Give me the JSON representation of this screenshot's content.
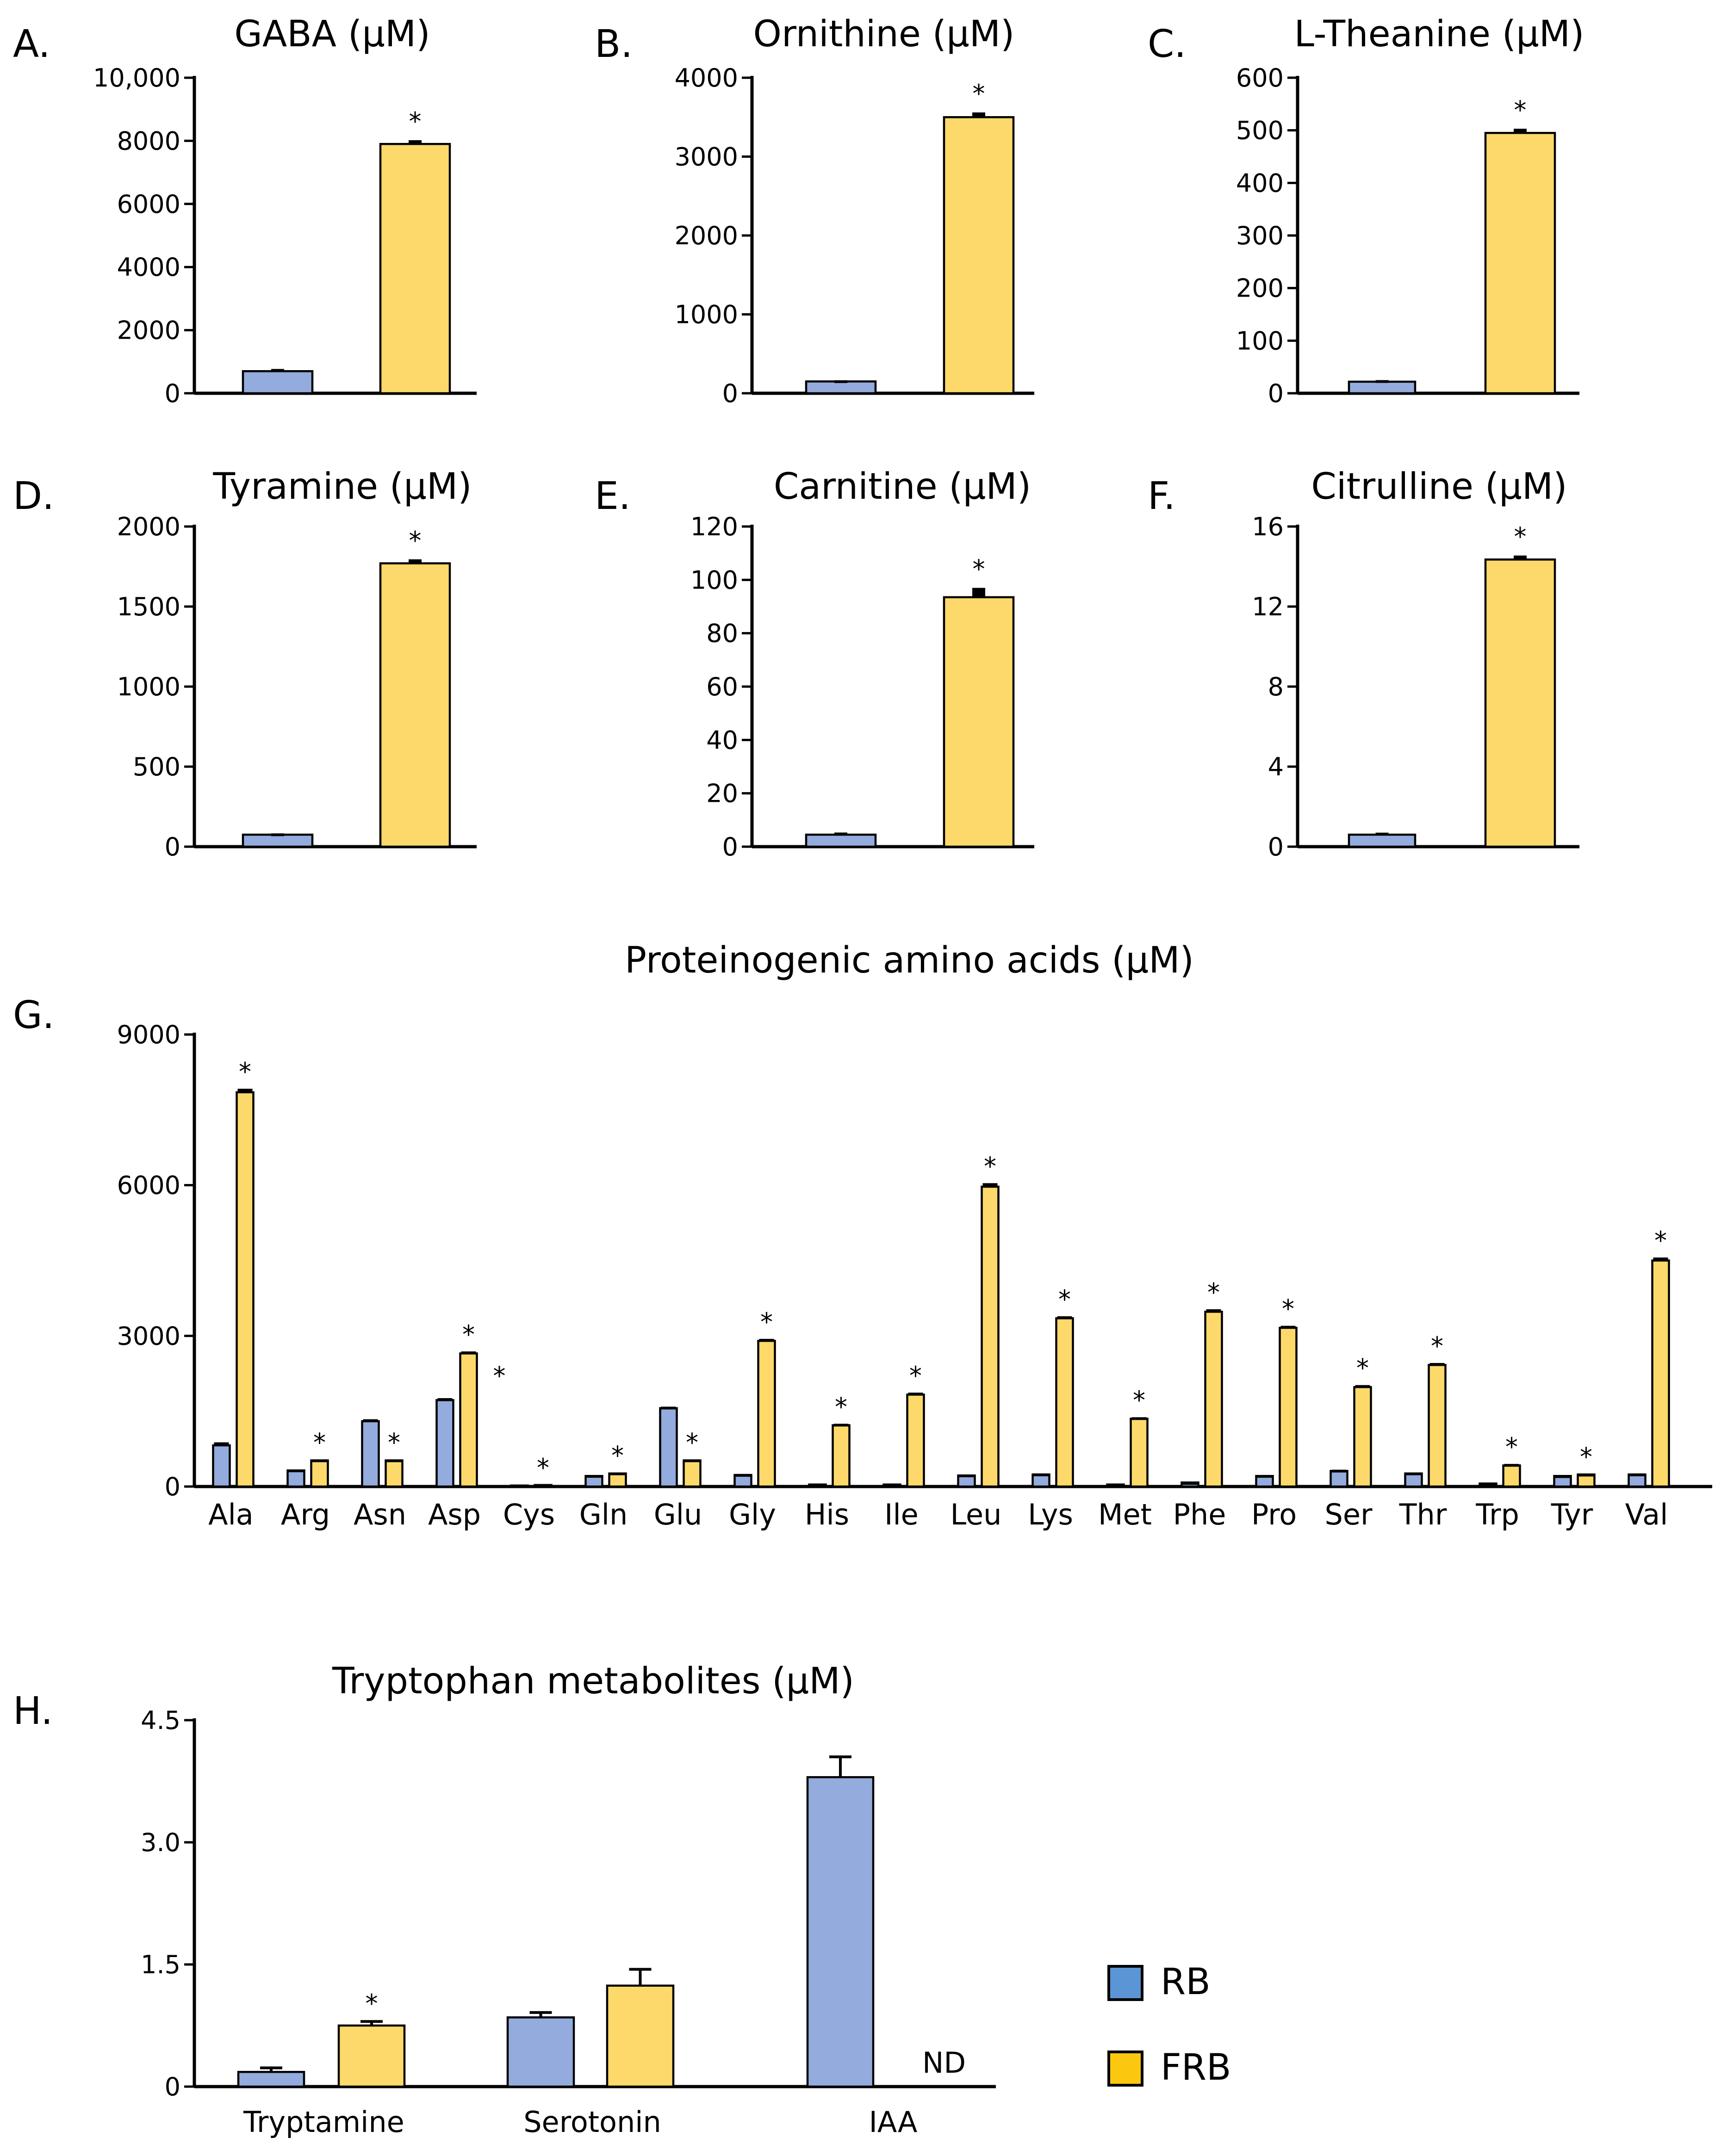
{
  "colors": {
    "RB": "#93abdd",
    "FRB": "#fdd96b"
  },
  "legend": [
    {
      "key": "RB",
      "label": "RB",
      "color": "#5b95d6"
    },
    {
      "key": "FRB",
      "label": "FRB",
      "color": "#fcc80f"
    }
  ],
  "chart_data": [
    {
      "id": "A",
      "letter": "A.",
      "type": "bar",
      "title": "GABA (µM)",
      "categories": [
        "RB",
        "FRB"
      ],
      "values": [
        700,
        7900
      ],
      "errors": [
        70,
        120
      ],
      "significant": [
        false,
        true
      ],
      "ylim": [
        0,
        10000
      ],
      "yticks": [
        0,
        2000,
        4000,
        6000,
        8000,
        10000
      ],
      "ytick_labels": [
        "0",
        "2000",
        "4000",
        "6000",
        "8000",
        "10,000"
      ]
    },
    {
      "id": "B",
      "letter": "B.",
      "type": "bar",
      "title": "Ornithine (µM)",
      "categories": [
        "RB",
        "FRB"
      ],
      "values": [
        150,
        3500
      ],
      "errors": [
        15,
        60
      ],
      "significant": [
        false,
        true
      ],
      "ylim": [
        0,
        4000
      ],
      "yticks": [
        0,
        1000,
        2000,
        3000,
        4000
      ],
      "ytick_labels": [
        "0",
        "1000",
        "2000",
        "3000",
        "4000"
      ]
    },
    {
      "id": "C",
      "letter": "C.",
      "type": "bar",
      "title": "L-Theanine (µM)",
      "categories": [
        "RB",
        "FRB"
      ],
      "values": [
        22,
        495
      ],
      "errors": [
        3,
        8
      ],
      "significant": [
        false,
        true
      ],
      "ylim": [
        0,
        600
      ],
      "yticks": [
        0,
        100,
        200,
        300,
        400,
        500,
        600
      ],
      "ytick_labels": [
        "0",
        "100",
        "200",
        "300",
        "400",
        "500",
        "600"
      ]
    },
    {
      "id": "D",
      "letter": "D.",
      "type": "bar",
      "title": "Tyramine (µM)",
      "categories": [
        "RB",
        "FRB"
      ],
      "values": [
        75,
        1770
      ],
      "errors": [
        8,
        25
      ],
      "significant": [
        false,
        true
      ],
      "ylim": [
        0,
        2000
      ],
      "yticks": [
        0,
        500,
        1000,
        1500,
        2000
      ],
      "ytick_labels": [
        "0",
        "500",
        "1000",
        "1500",
        "2000"
      ]
    },
    {
      "id": "E",
      "letter": "E.",
      "type": "bar",
      "title": "Carnitine (µM)",
      "categories": [
        "RB",
        "FRB"
      ],
      "values": [
        4.5,
        93.5
      ],
      "errors": [
        0.8,
        3.5
      ],
      "significant": [
        false,
        true
      ],
      "ylim": [
        0,
        120
      ],
      "yticks": [
        0,
        20,
        40,
        60,
        80,
        100,
        120
      ],
      "ytick_labels": [
        "0",
        "20",
        "40",
        "60",
        "80",
        "100",
        "120"
      ]
    },
    {
      "id": "F",
      "letter": "F.",
      "type": "bar",
      "title": "Citrulline (µM)",
      "categories": [
        "RB",
        "FRB"
      ],
      "values": [
        0.6,
        14.35
      ],
      "errors": [
        0.1,
        0.2
      ],
      "significant": [
        false,
        true
      ],
      "ylim": [
        0,
        16
      ],
      "yticks": [
        0,
        4,
        8,
        12,
        16
      ],
      "ytick_labels": [
        "0",
        "4",
        "8",
        "12",
        "16"
      ]
    },
    {
      "id": "G",
      "letter": "G.",
      "type": "bar",
      "title": "Proteinogenic amino acids (µM)",
      "categories": [
        "Ala",
        "Arg",
        "Asn",
        "Asp",
        "Cys",
        "Gln",
        "Glu",
        "Gly",
        "His",
        "Ile",
        "Leu",
        "Lys",
        "Met",
        "Phe",
        "Pro",
        "Ser",
        "Thr",
        "Trp",
        "Tyr",
        "Val"
      ],
      "series": [
        {
          "name": "RB",
          "values": [
            820,
            320,
            1300,
            1720,
            20,
            210,
            1560,
            230,
            40,
            40,
            220,
            240,
            40,
            80,
            210,
            310,
            260,
            60,
            210,
            240
          ],
          "errors": [
            60,
            20,
            40,
            40,
            5,
            20,
            30,
            20,
            5,
            5,
            20,
            20,
            5,
            10,
            20,
            25,
            20,
            5,
            15,
            20
          ]
        },
        {
          "name": "FRB",
          "values": [
            7850,
            520,
            520,
            2650,
            30,
            260,
            520,
            2900,
            1220,
            1830,
            5970,
            3350,
            1350,
            3480,
            3160,
            1980,
            2420,
            420,
            240,
            4500
          ],
          "errors": [
            70,
            20,
            20,
            40,
            5,
            20,
            20,
            40,
            30,
            40,
            70,
            40,
            30,
            50,
            40,
            40,
            40,
            30,
            15,
            60
          ]
        }
      ],
      "significant": [
        true,
        true,
        true,
        true,
        true,
        true,
        true,
        true,
        true,
        true,
        true,
        true,
        true,
        true,
        true,
        true,
        true,
        true,
        true,
        true
      ],
      "extra_star": {
        "category_index": 4,
        "value": 2400
      },
      "ylim": [
        0,
        9000
      ],
      "yticks": [
        0,
        3000,
        6000,
        9000
      ],
      "ytick_labels": [
        "0",
        "3000",
        "6000",
        "9000"
      ]
    },
    {
      "id": "H",
      "letter": "H.",
      "type": "bar",
      "title": "Tryptophan metabolites (µM)",
      "categories": [
        "Tryptamine",
        "Serotonin",
        "IAA"
      ],
      "series": [
        {
          "name": "RB",
          "values": [
            0.18,
            0.85,
            3.8
          ],
          "errors": [
            0.05,
            0.06,
            0.25
          ]
        },
        {
          "name": "FRB",
          "values": [
            0.75,
            1.24,
            null
          ],
          "errors": [
            0.05,
            0.2,
            null
          ]
        }
      ],
      "significant": [
        true,
        false,
        false
      ],
      "nd_label": "ND",
      "ylim": [
        0,
        4.5
      ],
      "yticks": [
        0,
        1.5,
        3.0,
        4.5
      ],
      "ytick_labels": [
        "0",
        "1.5",
        "3.0",
        "4.5"
      ]
    }
  ]
}
